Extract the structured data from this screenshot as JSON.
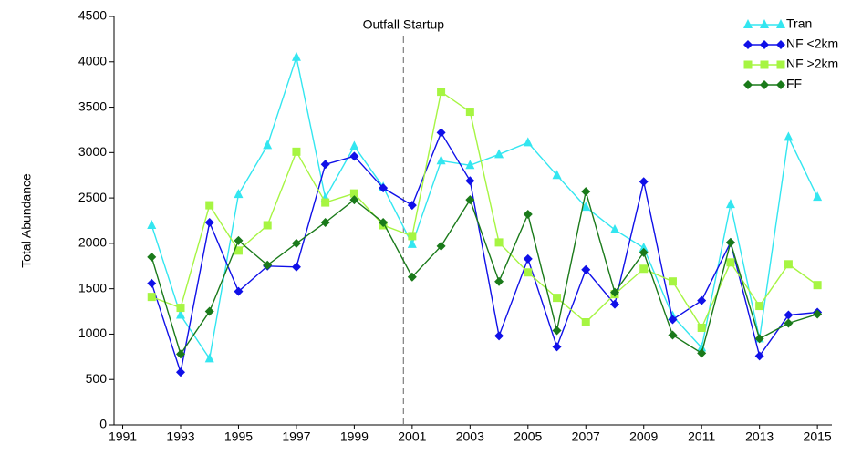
{
  "chart_data": {
    "type": "line",
    "y_label": "Total Abundance",
    "x": [
      1992,
      1993,
      1994,
      1995,
      1996,
      1997,
      1998,
      1999,
      2000,
      2001,
      2002,
      2003,
      2004,
      2005,
      2006,
      2007,
      2008,
      2009,
      2010,
      2011,
      2012,
      2013,
      2014,
      2015
    ],
    "series": [
      {
        "name": "Tran",
        "color": "#33e6f0",
        "marker": "triangle",
        "values": [
          2200,
          1210,
          730,
          2540,
          3080,
          4050,
          2500,
          3070,
          2620,
          1990,
          2910,
          2860,
          2980,
          3110,
          2750,
          2400,
          2150,
          1950,
          1200,
          850,
          2430,
          950,
          3170,
          2510
        ]
      },
      {
        "name": "NF <2km",
        "color": "#1010e8",
        "marker": "diamond",
        "values": [
          1560,
          580,
          2230,
          1470,
          1750,
          1740,
          2870,
          2960,
          2610,
          2420,
          3220,
          2690,
          980,
          1830,
          860,
          1710,
          1330,
          2680,
          1160,
          1370,
          2010,
          760,
          1210,
          1240
        ]
      },
      {
        "name": "NF >2km",
        "color": "#a6f542",
        "marker": "square",
        "values": [
          1410,
          1290,
          2420,
          1920,
          2200,
          3010,
          2450,
          2550,
          2200,
          2080,
          3670,
          3450,
          2010,
          1680,
          1400,
          1130,
          1440,
          1720,
          1580,
          1070,
          1790,
          1310,
          1770,
          1540
        ]
      },
      {
        "name": "FF",
        "color": "#1a7a1a",
        "marker": "diamond",
        "values": [
          1850,
          780,
          1250,
          2030,
          1760,
          2000,
          2230,
          2480,
          2230,
          1630,
          1970,
          2480,
          1580,
          2320,
          1040,
          2570,
          1460,
          1900,
          990,
          790,
          2010,
          950,
          1120,
          1220
        ]
      }
    ],
    "annotation": {
      "text": "Outfall Startup",
      "x": 2000.7
    },
    "xlim": [
      1990.7,
      2015.5
    ],
    "xticks": [
      1991,
      1993,
      1995,
      1997,
      1999,
      2001,
      2003,
      2005,
      2007,
      2009,
      2011,
      2013,
      2015
    ],
    "ylim": [
      0,
      4500
    ],
    "yticks": [
      0,
      500,
      1000,
      1500,
      2000,
      2500,
      3000,
      3500,
      4000,
      4500
    ],
    "grid": false,
    "legend": "top-right"
  }
}
